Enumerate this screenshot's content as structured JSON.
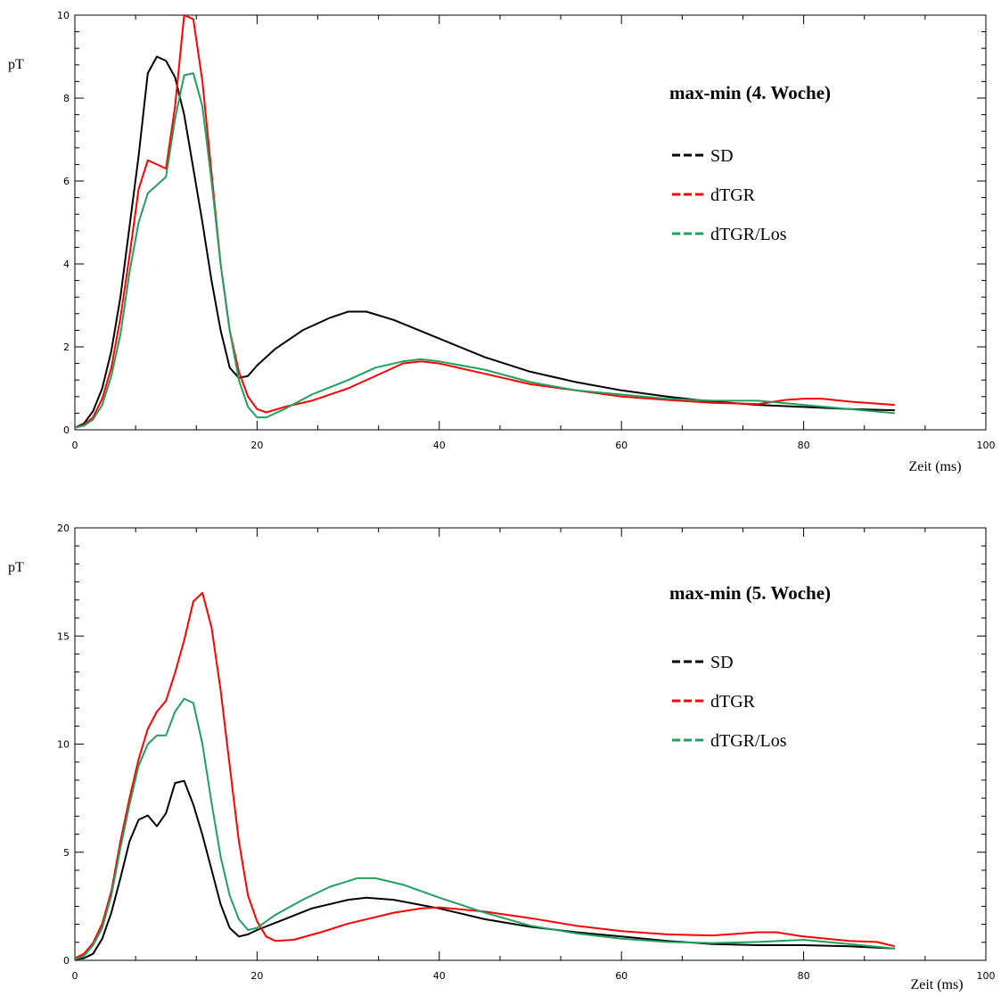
{
  "colors": {
    "SD": "#000000",
    "dTGR": "#ff0000",
    "dTGR/Los": "#20a060"
  },
  "chart_data": [
    {
      "type": "line",
      "title": "max-min (4. Woche)",
      "xlabel": "Zeit (ms)",
      "ylabel": "pT",
      "xlim": [
        0,
        100
      ],
      "ylim": [
        0,
        10
      ],
      "xticks": [
        0,
        20,
        40,
        60,
        80,
        100
      ],
      "yticks": [
        0,
        2,
        4,
        6,
        8,
        10
      ],
      "grid": false,
      "legend_position": "top-right",
      "series": [
        {
          "name": "SD",
          "points": [
            [
              0,
              0.05
            ],
            [
              1,
              0.15
            ],
            [
              2,
              0.45
            ],
            [
              3,
              1.0
            ],
            [
              4,
              1.9
            ],
            [
              5,
              3.2
            ],
            [
              6,
              4.9
            ],
            [
              7,
              6.6
            ],
            [
              8,
              8.6
            ],
            [
              9,
              9.0
            ],
            [
              10,
              8.9
            ],
            [
              11,
              8.5
            ],
            [
              12,
              7.6
            ],
            [
              13,
              6.3
            ],
            [
              14,
              5.0
            ],
            [
              15,
              3.6
            ],
            [
              16,
              2.4
            ],
            [
              17,
              1.5
            ],
            [
              18,
              1.25
            ],
            [
              19,
              1.3
            ],
            [
              20,
              1.55
            ],
            [
              22,
              1.95
            ],
            [
              25,
              2.4
            ],
            [
              28,
              2.7
            ],
            [
              30,
              2.85
            ],
            [
              32,
              2.85
            ],
            [
              35,
              2.65
            ],
            [
              40,
              2.2
            ],
            [
              45,
              1.75
            ],
            [
              50,
              1.4
            ],
            [
              55,
              1.15
            ],
            [
              60,
              0.95
            ],
            [
              65,
              0.8
            ],
            [
              70,
              0.68
            ],
            [
              75,
              0.6
            ],
            [
              80,
              0.55
            ],
            [
              85,
              0.5
            ],
            [
              90,
              0.47
            ]
          ]
        },
        {
          "name": "dTGR",
          "points": [
            [
              0,
              0.05
            ],
            [
              1,
              0.12
            ],
            [
              2,
              0.3
            ],
            [
              3,
              0.75
            ],
            [
              4,
              1.5
            ],
            [
              5,
              2.7
            ],
            [
              6,
              4.2
            ],
            [
              7,
              5.8
            ],
            [
              8,
              6.5
            ],
            [
              9,
              6.4
            ],
            [
              10,
              6.3
            ],
            [
              11,
              7.8
            ],
            [
              12,
              10.0
            ],
            [
              13,
              9.9
            ],
            [
              14,
              8.4
            ],
            [
              15,
              6.2
            ],
            [
              16,
              4.0
            ],
            [
              17,
              2.4
            ],
            [
              18,
              1.4
            ],
            [
              19,
              0.8
            ],
            [
              20,
              0.5
            ],
            [
              21,
              0.42
            ],
            [
              23,
              0.55
            ],
            [
              26,
              0.7
            ],
            [
              30,
              1.0
            ],
            [
              33,
              1.3
            ],
            [
              36,
              1.6
            ],
            [
              38,
              1.65
            ],
            [
              40,
              1.6
            ],
            [
              45,
              1.35
            ],
            [
              50,
              1.1
            ],
            [
              55,
              0.95
            ],
            [
              60,
              0.8
            ],
            [
              65,
              0.72
            ],
            [
              70,
              0.65
            ],
            [
              75,
              0.62
            ],
            [
              78,
              0.72
            ],
            [
              80,
              0.75
            ],
            [
              82,
              0.75
            ],
            [
              85,
              0.68
            ],
            [
              90,
              0.6
            ]
          ]
        },
        {
          "name": "dTGR/Los",
          "points": [
            [
              0,
              0.05
            ],
            [
              1,
              0.1
            ],
            [
              2,
              0.25
            ],
            [
              3,
              0.6
            ],
            [
              4,
              1.3
            ],
            [
              5,
              2.3
            ],
            [
              6,
              3.8
            ],
            [
              7,
              5.0
            ],
            [
              8,
              5.7
            ],
            [
              9,
              5.9
            ],
            [
              10,
              6.1
            ],
            [
              11,
              7.5
            ],
            [
              12,
              8.55
            ],
            [
              13,
              8.6
            ],
            [
              14,
              7.8
            ],
            [
              15,
              6.0
            ],
            [
              16,
              4.0
            ],
            [
              17,
              2.4
            ],
            [
              18,
              1.2
            ],
            [
              19,
              0.55
            ],
            [
              20,
              0.3
            ],
            [
              21,
              0.3
            ],
            [
              23,
              0.5
            ],
            [
              26,
              0.85
            ],
            [
              30,
              1.2
            ],
            [
              33,
              1.5
            ],
            [
              36,
              1.65
            ],
            [
              38,
              1.7
            ],
            [
              40,
              1.65
            ],
            [
              45,
              1.45
            ],
            [
              50,
              1.15
            ],
            [
              55,
              0.95
            ],
            [
              60,
              0.85
            ],
            [
              65,
              0.75
            ],
            [
              70,
              0.7
            ],
            [
              75,
              0.7
            ],
            [
              80,
              0.6
            ],
            [
              85,
              0.5
            ],
            [
              90,
              0.4
            ]
          ]
        }
      ]
    },
    {
      "type": "line",
      "title": "max-min (5. Woche)",
      "xlabel": "Zeit (ms)",
      "ylabel": "pT",
      "xlim": [
        0,
        100
      ],
      "ylim": [
        0,
        20
      ],
      "xticks": [
        0,
        20,
        40,
        60,
        80,
        100
      ],
      "yticks": [
        0,
        5,
        10,
        15,
        20
      ],
      "grid": false,
      "legend_position": "top-right",
      "series": [
        {
          "name": "SD",
          "points": [
            [
              0,
              0.05
            ],
            [
              1,
              0.1
            ],
            [
              2,
              0.3
            ],
            [
              3,
              1.0
            ],
            [
              4,
              2.2
            ],
            [
              5,
              3.8
            ],
            [
              6,
              5.5
            ],
            [
              7,
              6.5
            ],
            [
              8,
              6.7
            ],
            [
              9,
              6.2
            ],
            [
              10,
              6.8
            ],
            [
              11,
              8.2
            ],
            [
              12,
              8.3
            ],
            [
              13,
              7.2
            ],
            [
              14,
              5.8
            ],
            [
              15,
              4.2
            ],
            [
              16,
              2.6
            ],
            [
              17,
              1.5
            ],
            [
              18,
              1.1
            ],
            [
              19,
              1.2
            ],
            [
              20,
              1.4
            ],
            [
              23,
              1.9
            ],
            [
              26,
              2.4
            ],
            [
              30,
              2.8
            ],
            [
              32,
              2.9
            ],
            [
              35,
              2.8
            ],
            [
              40,
              2.4
            ],
            [
              45,
              1.9
            ],
            [
              50,
              1.55
            ],
            [
              55,
              1.3
            ],
            [
              60,
              1.1
            ],
            [
              65,
              0.9
            ],
            [
              70,
              0.75
            ],
            [
              75,
              0.7
            ],
            [
              80,
              0.7
            ],
            [
              85,
              0.65
            ],
            [
              90,
              0.55
            ]
          ]
        },
        {
          "name": "dTGR",
          "points": [
            [
              0,
              0.1
            ],
            [
              1,
              0.3
            ],
            [
              2,
              0.8
            ],
            [
              3,
              1.7
            ],
            [
              4,
              3.2
            ],
            [
              5,
              5.5
            ],
            [
              6,
              7.5
            ],
            [
              7,
              9.3
            ],
            [
              8,
              10.7
            ],
            [
              9,
              11.5
            ],
            [
              10,
              12.0
            ],
            [
              11,
              13.3
            ],
            [
              12,
              14.8
            ],
            [
              13,
              16.6
            ],
            [
              14,
              17.0
            ],
            [
              15,
              15.4
            ],
            [
              16,
              12.5
            ],
            [
              17,
              9.0
            ],
            [
              18,
              5.5
            ],
            [
              19,
              3.0
            ],
            [
              20,
              1.8
            ],
            [
              21,
              1.1
            ],
            [
              22,
              0.9
            ],
            [
              24,
              0.95
            ],
            [
              27,
              1.3
            ],
            [
              30,
              1.7
            ],
            [
              35,
              2.2
            ],
            [
              38,
              2.4
            ],
            [
              40,
              2.45
            ],
            [
              45,
              2.25
            ],
            [
              50,
              1.95
            ],
            [
              55,
              1.6
            ],
            [
              60,
              1.35
            ],
            [
              65,
              1.2
            ],
            [
              70,
              1.15
            ],
            [
              75,
              1.3
            ],
            [
              77,
              1.3
            ],
            [
              80,
              1.1
            ],
            [
              85,
              0.9
            ],
            [
              88,
              0.85
            ],
            [
              90,
              0.65
            ]
          ]
        },
        {
          "name": "dTGR/Los",
          "points": [
            [
              0,
              0.05
            ],
            [
              1,
              0.2
            ],
            [
              2,
              0.7
            ],
            [
              3,
              1.5
            ],
            [
              4,
              3.0
            ],
            [
              5,
              5.2
            ],
            [
              6,
              7.2
            ],
            [
              7,
              9.0
            ],
            [
              8,
              10.0
            ],
            [
              9,
              10.4
            ],
            [
              10,
              10.4
            ],
            [
              11,
              11.5
            ],
            [
              12,
              12.1
            ],
            [
              13,
              11.9
            ],
            [
              14,
              10.0
            ],
            [
              15,
              7.3
            ],
            [
              16,
              4.8
            ],
            [
              17,
              3.0
            ],
            [
              18,
              1.9
            ],
            [
              19,
              1.4
            ],
            [
              20,
              1.5
            ],
            [
              22,
              2.1
            ],
            [
              25,
              2.8
            ],
            [
              28,
              3.4
            ],
            [
              31,
              3.8
            ],
            [
              33,
              3.8
            ],
            [
              36,
              3.5
            ],
            [
              40,
              2.9
            ],
            [
              45,
              2.2
            ],
            [
              50,
              1.6
            ],
            [
              55,
              1.25
            ],
            [
              60,
              1.0
            ],
            [
              65,
              0.85
            ],
            [
              70,
              0.8
            ],
            [
              75,
              0.85
            ],
            [
              80,
              0.95
            ],
            [
              85,
              0.75
            ],
            [
              90,
              0.55
            ]
          ]
        }
      ]
    }
  ]
}
